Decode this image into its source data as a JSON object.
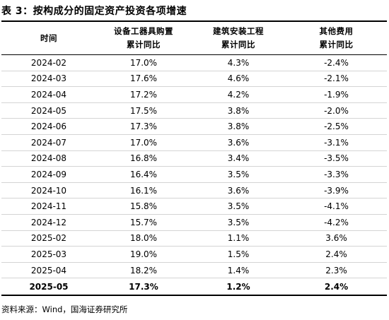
{
  "title": "表 3：按构成分的固定资产投资各项增速",
  "table": {
    "header": {
      "col1": "时间",
      "col2_line1": "设备工器具购置",
      "col2_line2": "累计同比",
      "col3_line1": "建筑安装工程",
      "col3_line2": "累计同比",
      "col4_line1": "其他费用",
      "col4_line2": "累计同比"
    },
    "rows": [
      [
        "2024-02",
        "17.0%",
        "4.3%",
        "-2.4%"
      ],
      [
        "2024-03",
        "17.6%",
        "4.6%",
        "-2.1%"
      ],
      [
        "2024-04",
        "17.2%",
        "4.2%",
        "-1.9%"
      ],
      [
        "2024-05",
        "17.5%",
        "3.8%",
        "-2.0%"
      ],
      [
        "2024-06",
        "17.3%",
        "3.8%",
        "-2.5%"
      ],
      [
        "2024-07",
        "17.0%",
        "3.6%",
        "-3.1%"
      ],
      [
        "2024-08",
        "16.8%",
        "3.4%",
        "-3.5%"
      ],
      [
        "2024-09",
        "16.4%",
        "3.5%",
        "-3.3%"
      ],
      [
        "2024-10",
        "16.1%",
        "3.6%",
        "-3.9%"
      ],
      [
        "2024-11",
        "15.8%",
        "3.5%",
        "-4.1%"
      ],
      [
        "2024-12",
        "15.7%",
        "3.5%",
        "-4.2%"
      ],
      [
        "2025-02",
        "18.0%",
        "1.1%",
        "3.6%"
      ],
      [
        "2025-03",
        "19.0%",
        "1.5%",
        "2.4%"
      ],
      [
        "2025-04",
        "18.2%",
        "1.4%",
        "2.3%"
      ],
      [
        "2025-05",
        "17.3%",
        "1.2%",
        "2.4%"
      ]
    ]
  },
  "source": "资料来源：Wind，国海证券研究所"
}
